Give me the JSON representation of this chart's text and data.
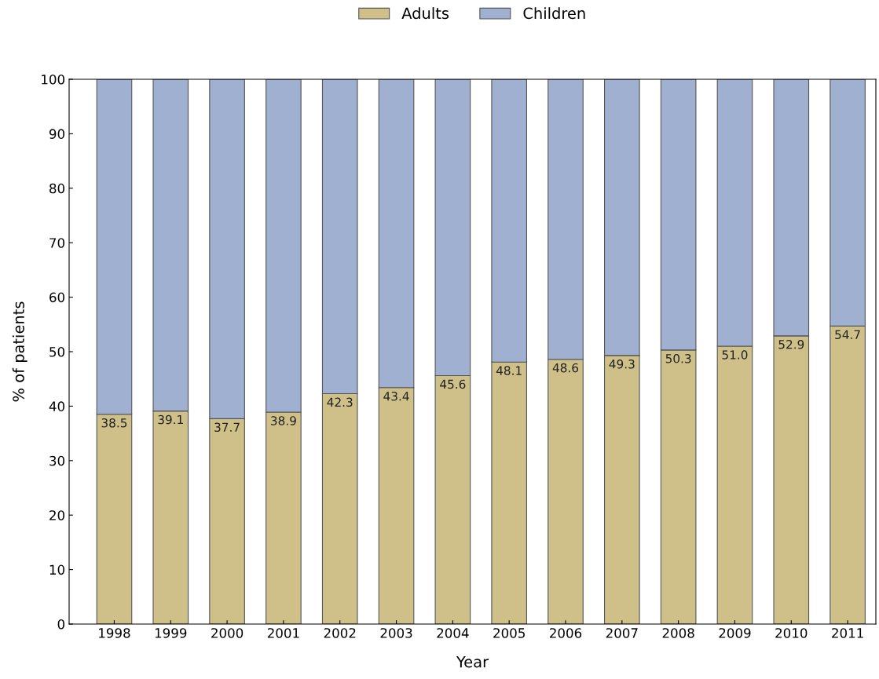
{
  "chart_data": {
    "type": "bar",
    "stacked": true,
    "xlabel": "Year",
    "ylabel": "% of patients",
    "categories": [
      "1998",
      "1999",
      "2000",
      "2001",
      "2002",
      "2003",
      "2004",
      "2005",
      "2006",
      "2007",
      "2008",
      "2009",
      "2010",
      "2011"
    ],
    "series": [
      {
        "name": "Adults",
        "color": "#cfc08a",
        "values": [
          38.5,
          39.1,
          37.7,
          38.9,
          42.3,
          43.4,
          45.6,
          48.1,
          48.6,
          49.3,
          50.3,
          51.0,
          52.9,
          54.7
        ],
        "value_labels": [
          "38.5",
          "39.1",
          "37.7",
          "38.9",
          "42.3",
          "43.4",
          "45.6",
          "48.1",
          "48.6",
          "49.3",
          "50.3",
          "51.0",
          "52.9",
          "54.7"
        ]
      },
      {
        "name": "Children",
        "color": "#9fb0d0",
        "values": [
          61.5,
          60.9,
          62.3,
          61.1,
          57.7,
          56.6,
          54.4,
          51.9,
          51.4,
          50.7,
          49.7,
          49.0,
          47.1,
          45.3
        ]
      }
    ],
    "ylim": [
      0,
      100
    ],
    "yticks": [
      0,
      10,
      20,
      30,
      40,
      50,
      60,
      70,
      80,
      90,
      100
    ],
    "grid": false,
    "legend": "top"
  }
}
